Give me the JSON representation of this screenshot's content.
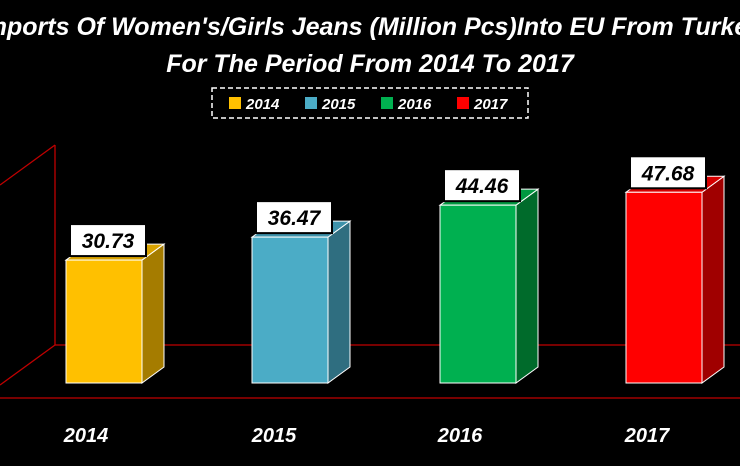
{
  "chart_data": {
    "type": "bar",
    "title_line1": "Imports Of Women's/Girls Jeans (Million Pcs)Into EU From Turkey",
    "title_line2": "For The Period From 2014 To 2017",
    "categories": [
      "2014",
      "2015",
      "2016",
      "2017"
    ],
    "values": [
      30.73,
      36.47,
      44.46,
      47.68
    ],
    "value_labels": [
      "30.73",
      "36.47",
      "44.46",
      "47.68"
    ],
    "legend": [
      "2014",
      "2015",
      "2016",
      "2017"
    ],
    "legend_position": "top-center",
    "colors": [
      "#FFC000",
      "#4BACC6",
      "#00B050",
      "#FF0000"
    ],
    "side_colors": [
      "#A57C00",
      "#2F6E80",
      "#006B2B",
      "#A00000"
    ],
    "top_colors": [
      "#D9A300",
      "#3E92AA",
      "#009840",
      "#D60000"
    ],
    "axis_color": "#C00000",
    "grid": false,
    "ylim": [
      0,
      55
    ]
  }
}
